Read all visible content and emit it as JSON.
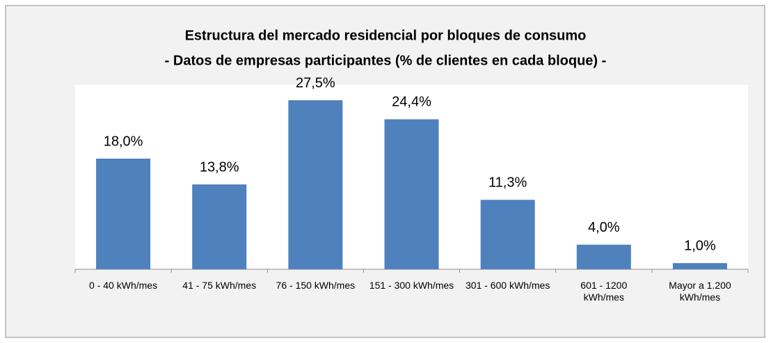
{
  "chart_data": {
    "type": "bar",
    "title": "Estructura del mercado residencial por bloques de consumo",
    "subtitle": "- Datos de empresas participantes (% de clientes en cada bloque) -",
    "categories": [
      "0 - 40 kWh/mes",
      "41 - 75 kWh/mes",
      "76 - 150 kWh/mes",
      "151 - 300 kWh/mes",
      "301 - 600 kWh/mes",
      "601 - 1200 kWh/mes",
      "Mayor a 1.200 kWh/mes"
    ],
    "values": [
      18.0,
      13.8,
      27.5,
      24.4,
      11.3,
      4.0,
      1.0
    ],
    "value_labels": [
      "18,0%",
      "13,8%",
      "27,5%",
      "24,4%",
      "11,3%",
      "4,0%",
      "1,0%"
    ],
    "color": "#4f81bd",
    "ylim": [
      0,
      30
    ]
  }
}
